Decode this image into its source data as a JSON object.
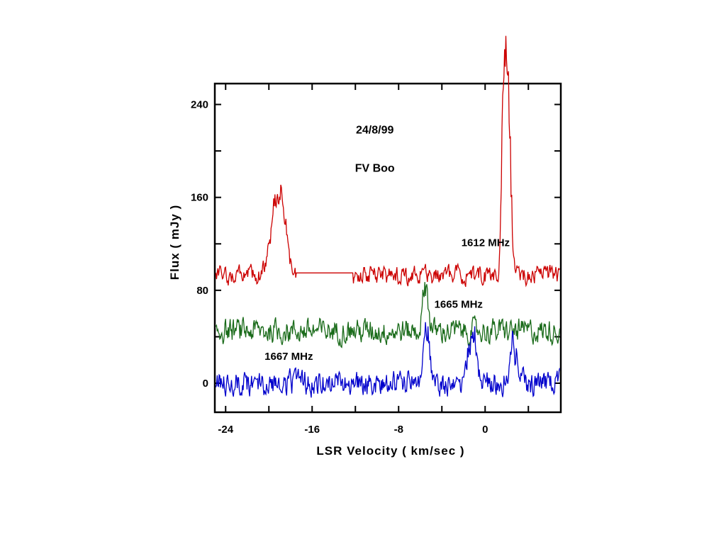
{
  "chart_data": {
    "type": "line",
    "title": "",
    "xlabel": "LSR  Velocity ( km/sec )",
    "ylabel": "Flux  ( mJy )",
    "xlim": [
      -25,
      7
    ],
    "ylim": [
      -25,
      258
    ],
    "x_ticks": [
      -24,
      -16,
      -8,
      0
    ],
    "y_ticks": [
      0,
      80,
      160,
      240
    ],
    "grid": false,
    "annotations": [
      {
        "text": "24/8/99",
        "x": -10.2,
        "y": 215
      },
      {
        "text": "FV  Boo",
        "x": -10.2,
        "y": 182
      }
    ],
    "series": [
      {
        "name": "1612 MHz",
        "color": "#cc0000",
        "label_pos": {
          "x": -2.2,
          "y": 118
        },
        "baseline": 93,
        "noise": 6,
        "gaps": [
          [
            -17.5,
            -12.2
          ]
        ],
        "gap_level": 95,
        "features": [
          {
            "center": -19.2,
            "width": 0.55,
            "amp": 70
          },
          {
            "center": -18.6,
            "width": 0.3,
            "amp": 15
          },
          {
            "center": 1.85,
            "width": 0.22,
            "amp": 135
          },
          {
            "center": 2.2,
            "width": 0.22,
            "amp": 115
          },
          {
            "center": 1.65,
            "width": 0.15,
            "amp": 70
          }
        ]
      },
      {
        "name": "1665 MHz",
        "color": "#1a6b1a",
        "label_pos": {
          "x": -4.7,
          "y": 65
        },
        "baseline": 45,
        "noise": 8,
        "features": [
          {
            "center": -5.5,
            "width": 0.25,
            "amp": 40
          }
        ]
      },
      {
        "name": "1667 MHz",
        "color": "#0000cc",
        "label_pos": {
          "x": -20.4,
          "y": 20
        },
        "baseline": 0,
        "noise": 8,
        "features": [
          {
            "center": -5.4,
            "width": 0.25,
            "amp": 50
          },
          {
            "center": -1.2,
            "width": 0.35,
            "amp": 45
          },
          {
            "center": 2.6,
            "width": 0.35,
            "amp": 35
          }
        ]
      }
    ]
  }
}
